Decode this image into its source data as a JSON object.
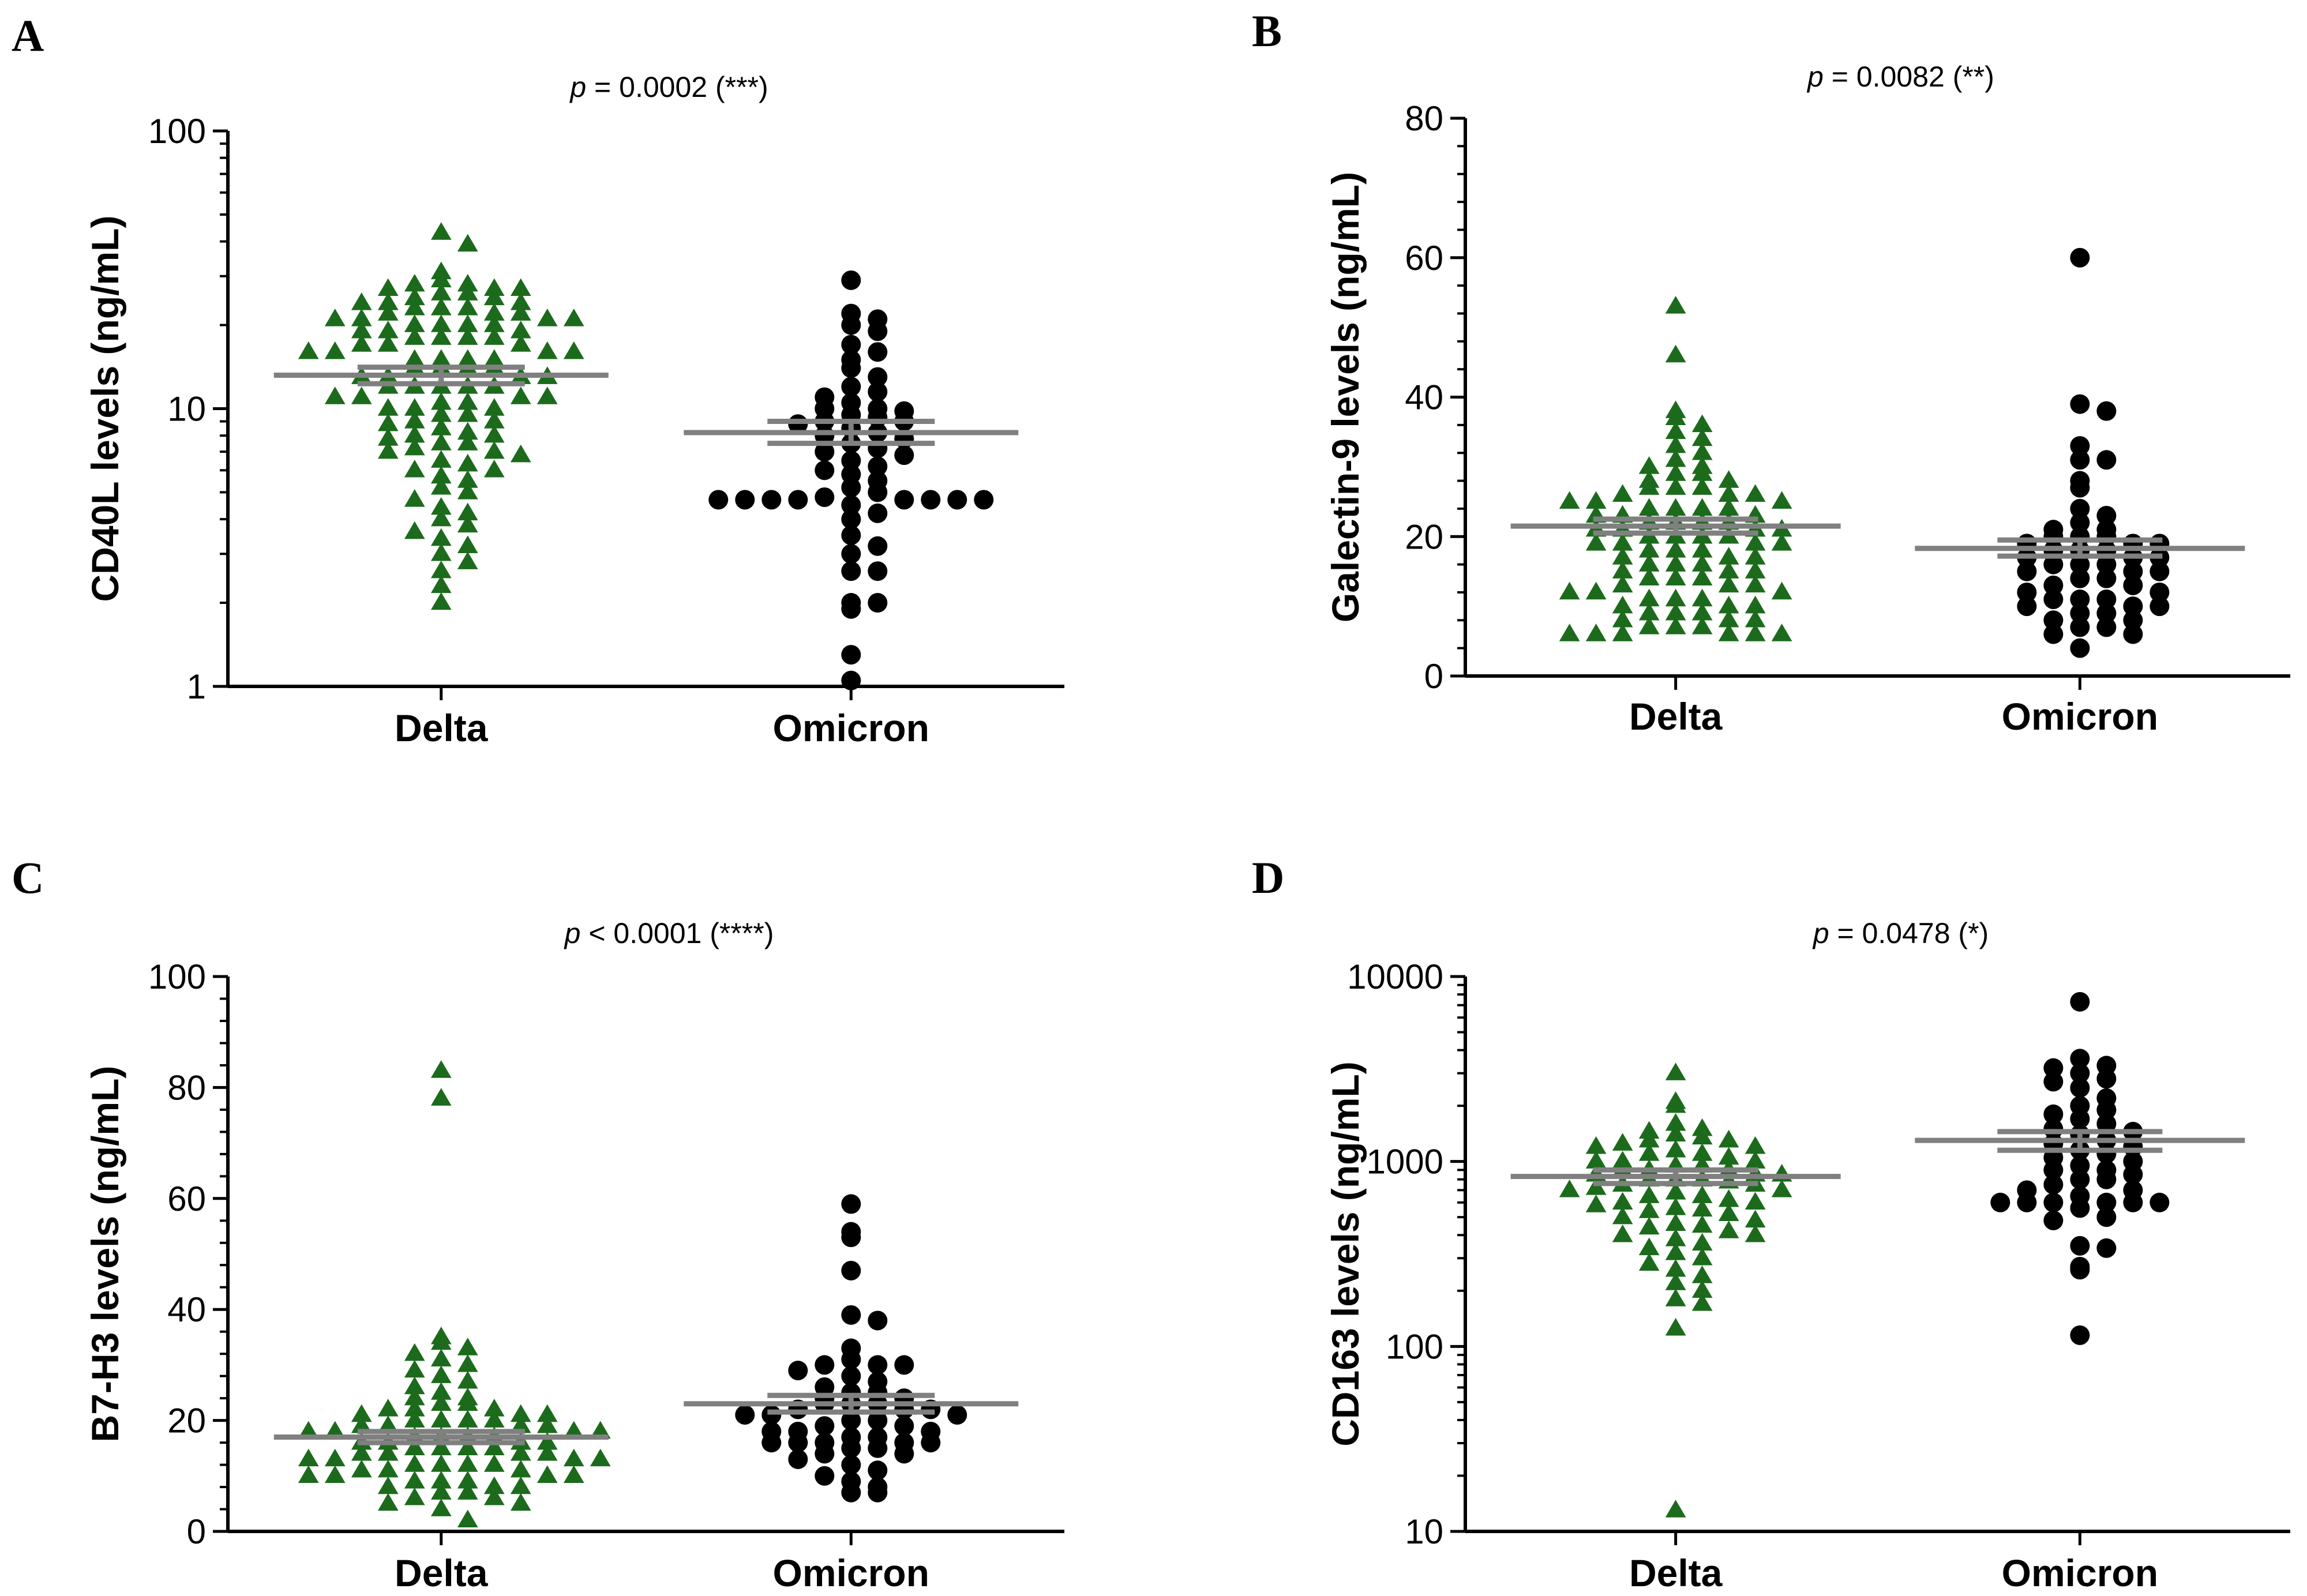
{
  "colors": {
    "delta": "#1c6b1c",
    "omicron": "#000000",
    "summary": "#808080",
    "axis": "#000000"
  },
  "chart_data": [
    {
      "type": "scatter",
      "panel": "A",
      "p_prefix": "p",
      "p_text": " = 0.0002 (***)",
      "ylabel": "CD40L levels (ng/mL)",
      "yscale": "log",
      "ylim": [
        1,
        100
      ],
      "yticks": [
        1,
        10,
        100
      ],
      "ytick_labels": [
        "1",
        "10",
        "100"
      ],
      "categories": [
        "Delta",
        "Omicron"
      ],
      "series": [
        {
          "name": "Delta",
          "marker": "triangle",
          "mean": 13.2,
          "sem_low": 12.3,
          "sem_high": 14.1,
          "values": [
            43,
            39,
            31,
            29,
            28,
            28,
            27,
            27,
            27,
            26,
            26,
            25,
            25,
            24,
            24,
            24,
            23,
            23,
            23,
            22,
            22,
            22,
            21,
            21,
            21,
            21,
            20,
            20,
            20,
            20,
            19,
            19,
            19,
            18,
            18,
            18,
            18,
            17,
            17,
            17,
            16,
            16,
            16,
            16,
            15,
            15,
            15,
            15,
            14,
            14,
            14,
            14,
            13,
            13,
            13,
            13,
            12,
            12,
            12,
            12,
            12,
            11,
            11,
            11,
            11,
            10.5,
            10.5,
            10,
            10,
            10,
            9.5,
            9.5,
            9,
            9,
            8.8,
            8.5,
            8.2,
            8,
            8,
            7.8,
            7.5,
            7.5,
            7.2,
            7,
            7,
            6.8,
            6.5,
            6.3,
            6,
            6,
            5.7,
            5.5,
            5.2,
            5,
            4.7,
            4.4,
            4.2,
            4,
            3.8,
            3.6,
            3.4,
            3.2,
            3,
            2.8,
            2.6,
            2.3,
            2
          ]
        },
        {
          "name": "Omicron",
          "marker": "circle",
          "mean": 8.2,
          "sem_low": 7.5,
          "sem_high": 9.0,
          "values": [
            29,
            22,
            21,
            20,
            19,
            17,
            16,
            15,
            14,
            13,
            12,
            11.5,
            11,
            10.5,
            10,
            10,
            9.8,
            9.5,
            9.3,
            9,
            9,
            8.8,
            8.5,
            8.2,
            8,
            7.8,
            7.5,
            7.2,
            7,
            6.8,
            6.5,
            6.2,
            6,
            5.8,
            5.5,
            5.2,
            5,
            4.8,
            4.7,
            4.7,
            4.7,
            4.7,
            4.7,
            4.7,
            4.7,
            4.7,
            4.5,
            4.2,
            4,
            3.5,
            3.2,
            3,
            2.6,
            2.6,
            2,
            2,
            1.9,
            1.3,
            1.05
          ]
        }
      ]
    },
    {
      "type": "scatter",
      "panel": "B",
      "p_prefix": "p",
      "p_text": " = 0.0082 (**)",
      "ylabel": "Galectin-9 levels (ng/mL)",
      "yscale": "linear",
      "ylim": [
        0,
        80
      ],
      "yticks": [
        0,
        20,
        40,
        60,
        80
      ],
      "ytick_labels": [
        "0",
        "20",
        "40",
        "60",
        "80"
      ],
      "categories": [
        "Delta",
        "Omicron"
      ],
      "series": [
        {
          "name": "Delta",
          "marker": "triangle",
          "mean": 21.5,
          "sem_low": 20.5,
          "sem_high": 22.5,
          "values": [
            53,
            46,
            38,
            37,
            36,
            35,
            34,
            33,
            32,
            31,
            30,
            30,
            29,
            29,
            28,
            28,
            27,
            27,
            27,
            26,
            26,
            26,
            25,
            25,
            25,
            24,
            24,
            24,
            24,
            23,
            23,
            23,
            22,
            22,
            22,
            22,
            21,
            21,
            21,
            21,
            20,
            20,
            20,
            20,
            19,
            19,
            19,
            19,
            18,
            18,
            18,
            17,
            17,
            17,
            16,
            16,
            16,
            15,
            15,
            15,
            14,
            14,
            14,
            13,
            13,
            13,
            12,
            12,
            12,
            11,
            11,
            11,
            10,
            10,
            10,
            9,
            9,
            9,
            8,
            8,
            8,
            7,
            7,
            7,
            6,
            6,
            6,
            6,
            6,
            6
          ]
        },
        {
          "name": "Omicron",
          "marker": "circle",
          "mean": 18.3,
          "sem_low": 17.2,
          "sem_high": 19.5,
          "values": [
            60,
            39,
            38,
            33,
            31,
            31,
            28,
            27,
            24,
            23,
            22,
            21,
            21,
            20,
            20,
            20,
            19,
            19,
            19,
            18,
            18,
            18,
            17,
            17,
            17,
            16,
            16,
            16,
            15,
            15,
            15,
            14,
            14,
            13,
            13,
            12,
            12,
            11,
            11,
            11,
            10,
            10,
            10,
            9,
            9,
            8,
            8,
            7,
            7,
            6,
            6,
            4
          ]
        }
      ]
    },
    {
      "type": "scatter",
      "panel": "C",
      "p_prefix": "p",
      "p_text": " < 0.0001 (****)",
      "ylabel": "B7-H3 levels (ng/mL)",
      "yscale": "linear",
      "ylim": [
        0,
        100
      ],
      "yticks": [
        0,
        20,
        40,
        60,
        80,
        100
      ],
      "ytick_labels": [
        "0",
        "20",
        "40",
        "60",
        "80",
        "100"
      ],
      "categories": [
        "Delta",
        "Omicron"
      ],
      "series": [
        {
          "name": "Delta",
          "marker": "triangle",
          "mean": 17,
          "sem_low": 16,
          "sem_high": 18,
          "values": [
            83,
            78,
            35,
            34,
            33,
            32,
            31,
            30,
            29,
            28,
            27,
            26,
            25,
            24,
            24,
            23,
            23,
            22,
            22,
            22,
            21,
            21,
            21,
            20,
            20,
            20,
            20,
            19,
            19,
            19,
            19,
            18,
            18,
            18,
            18,
            17,
            17,
            17,
            17,
            16,
            16,
            16,
            16,
            15,
            15,
            15,
            15,
            14,
            14,
            14,
            14,
            13,
            13,
            13,
            13,
            12,
            12,
            12,
            12,
            11,
            11,
            11,
            10,
            10,
            10,
            10,
            9,
            9,
            9,
            8,
            8,
            8,
            7,
            7,
            6,
            6,
            5,
            5,
            4,
            2
          ]
        },
        {
          "name": "Omicron",
          "marker": "circle",
          "mean": 23,
          "sem_low": 21.5,
          "sem_high": 24.5,
          "values": [
            59,
            54,
            53,
            47,
            39,
            38,
            33,
            31,
            30,
            30,
            30,
            29,
            28,
            27,
            26,
            25,
            25,
            24,
            24,
            23,
            23,
            23,
            22,
            22,
            22,
            21,
            21,
            21,
            20,
            20,
            19,
            19,
            18,
            18,
            18,
            17,
            17,
            16,
            16,
            16,
            16,
            16,
            15,
            15,
            14,
            14,
            13,
            12,
            11,
            10,
            9,
            8,
            7,
            7
          ]
        }
      ]
    },
    {
      "type": "scatter",
      "panel": "D",
      "p_prefix": "p",
      "p_text": " = 0.0478 (*)",
      "ylabel": "CD163 levels (ng/mL)",
      "yscale": "log",
      "ylim": [
        10,
        10000
      ],
      "yticks": [
        10,
        100,
        1000,
        10000
      ],
      "ytick_labels": [
        "10",
        "100",
        "1000",
        "10000"
      ],
      "categories": [
        "Delta",
        "Omicron"
      ],
      "series": [
        {
          "name": "Delta",
          "marker": "triangle",
          "mean": 830,
          "sem_low": 760,
          "sem_high": 900,
          "values": [
            3000,
            2100,
            2000,
            1600,
            1500,
            1450,
            1400,
            1350,
            1300,
            1300,
            1250,
            1200,
            1200,
            1150,
            1100,
            1100,
            1050,
            1000,
            1000,
            1000,
            950,
            950,
            900,
            900,
            900,
            850,
            850,
            850,
            800,
            800,
            800,
            780,
            750,
            750,
            720,
            700,
            700,
            680,
            650,
            650,
            620,
            600,
            600,
            580,
            560,
            550,
            540,
            520,
            500,
            480,
            460,
            450,
            440,
            420,
            400,
            400,
            380,
            360,
            340,
            320,
            300,
            280,
            260,
            240,
            220,
            200,
            180,
            170,
            125,
            13
          ]
        },
        {
          "name": "Omicron",
          "marker": "circle",
          "mean": 1300,
          "sem_low": 1150,
          "sem_high": 1450,
          "values": [
            7300,
            3600,
            3300,
            3200,
            3000,
            2800,
            2700,
            2500,
            2200,
            2000,
            1900,
            1800,
            1700,
            1600,
            1500,
            1450,
            1400,
            1300,
            1250,
            1200,
            1150,
            1100,
            1050,
            1000,
            950,
            900,
            900,
            850,
            800,
            800,
            750,
            700,
            700,
            650,
            600,
            600,
            600,
            600,
            600,
            600,
            560,
            500,
            480,
            350,
            340,
            270,
            260,
            115
          ]
        }
      ]
    }
  ]
}
